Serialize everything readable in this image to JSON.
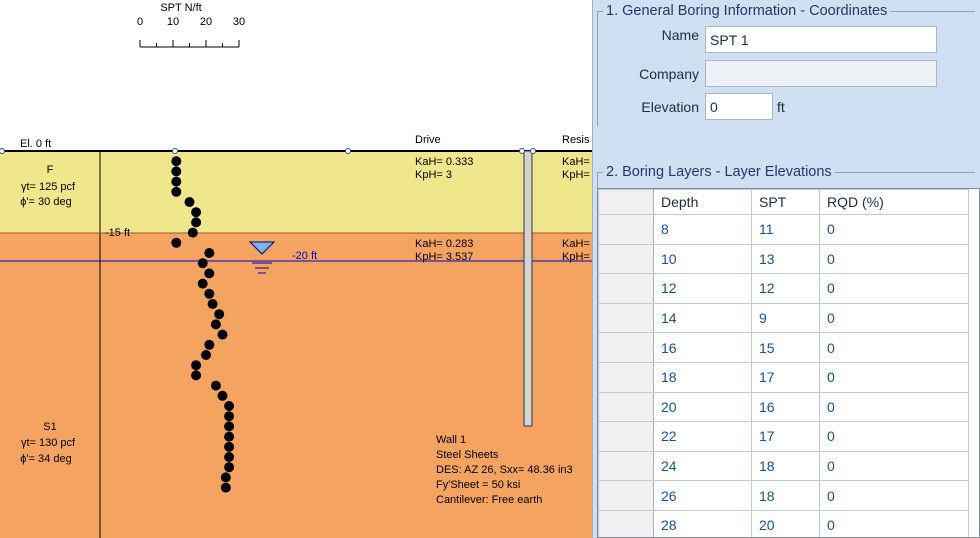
{
  "profile": {
    "spt_scale": {
      "title": "SPT N/ft",
      "ticks": [
        "0",
        "10",
        "20",
        "30"
      ]
    },
    "ground_label": "El. 0 ft",
    "columns": {
      "drive": "Drive",
      "resist": "Resis"
    },
    "layer_boundary_label": "-15 ft",
    "water_table_label": "-20 ft",
    "soils": [
      {
        "name": "F",
        "unit_weight": "γt= 125 pcf",
        "friction": "ϕ'= 30 deg",
        "drive_ka": "KaH= 0.333",
        "drive_kp": "KpH= 3",
        "resist_ka": "KaH=",
        "resist_kp": "KpH=",
        "color": "#f0e68c"
      },
      {
        "name": "S1",
        "unit_weight": "γt= 130 pcf",
        "friction": "ϕ'= 34 deg",
        "drive_ka": "KaH= 0.283",
        "drive_kp": "KpH= 3.537",
        "resist_ka": "KaH=",
        "resist_kp": "KpH=",
        "color": "#f4a460"
      }
    ],
    "wall_info": [
      "Wall 1",
      "Steel Sheets",
      "DES: AZ 26, Sxx= 48.36 in3",
      "Fy'Sheet = 50 ksi",
      "Cantilever:  Free earth"
    ],
    "spt_points": [
      {
        "depth": 1,
        "n": 11
      },
      {
        "depth": 2,
        "n": 11
      },
      {
        "depth": 3,
        "n": 11
      },
      {
        "depth": 4,
        "n": 11
      },
      {
        "depth": 5,
        "n": 15
      },
      {
        "depth": 6,
        "n": 17
      },
      {
        "depth": 7,
        "n": 17
      },
      {
        "depth": 8,
        "n": 16
      },
      {
        "depth": 9,
        "n": 11
      },
      {
        "depth": 10,
        "n": 21
      },
      {
        "depth": 11,
        "n": 19
      },
      {
        "depth": 12,
        "n": 21
      },
      {
        "depth": 13,
        "n": 19
      },
      {
        "depth": 14,
        "n": 21
      },
      {
        "depth": 15,
        "n": 22
      },
      {
        "depth": 16,
        "n": 24
      },
      {
        "depth": 17,
        "n": 23
      },
      {
        "depth": 18,
        "n": 25
      },
      {
        "depth": 19,
        "n": 21
      },
      {
        "depth": 20,
        "n": 20
      },
      {
        "depth": 21,
        "n": 17
      },
      {
        "depth": 22,
        "n": 17
      },
      {
        "depth": 23,
        "n": 23
      },
      {
        "depth": 24,
        "n": 25
      },
      {
        "depth": 25,
        "n": 27
      },
      {
        "depth": 26,
        "n": 27
      },
      {
        "depth": 27,
        "n": 27
      },
      {
        "depth": 28,
        "n": 27
      },
      {
        "depth": 29,
        "n": 27
      },
      {
        "depth": 30,
        "n": 27
      },
      {
        "depth": 31,
        "n": 27
      },
      {
        "depth": 32,
        "n": 26
      },
      {
        "depth": 33,
        "n": 26
      }
    ]
  },
  "dialog": {
    "section1_title": "1. General Boring Information - Coordinates",
    "name_label": "Name",
    "name_value": "SPT 1",
    "company_label": "Company",
    "company_value": "",
    "elevation_label": "Elevation",
    "elevation_value": "0",
    "elevation_unit": "ft",
    "section2_title": "2. Boring Layers - Layer Elevations",
    "table": {
      "headers": [
        "",
        "Depth",
        "SPT",
        "RQD (%)"
      ],
      "rows": [
        [
          "8",
          "11",
          "0"
        ],
        [
          "10",
          "13",
          "0"
        ],
        [
          "12",
          "12",
          "0"
        ],
        [
          "14",
          "9",
          "0"
        ],
        [
          "16",
          "15",
          "0"
        ],
        [
          "18",
          "17",
          "0"
        ],
        [
          "20",
          "16",
          "0"
        ],
        [
          "22",
          "17",
          "0"
        ],
        [
          "24",
          "18",
          "0"
        ],
        [
          "26",
          "18",
          "0"
        ],
        [
          "28",
          "20",
          "0"
        ]
      ]
    }
  }
}
